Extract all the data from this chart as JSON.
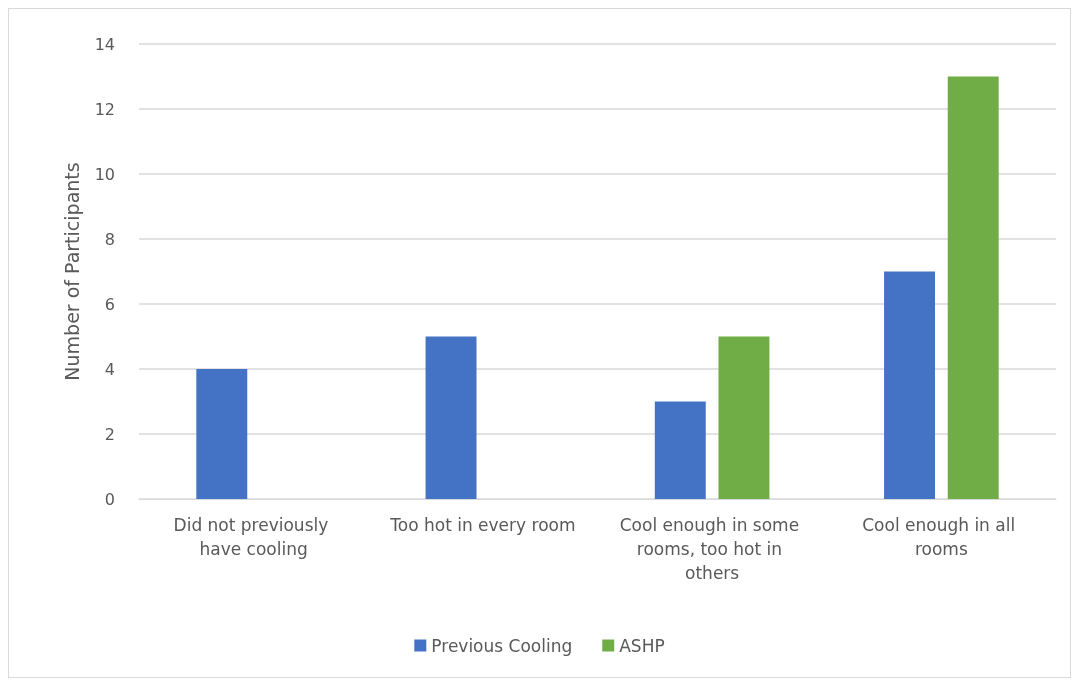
{
  "chart_data": {
    "type": "bar",
    "ylabel": "Number of Participants",
    "categories": [
      "Did not previously have cooling",
      "Too hot in every room",
      "Cool enough in some rooms, too hot in others",
      "Cool enough in all rooms"
    ],
    "series": [
      {
        "name": "Previous Cooling",
        "color": "#4472c4",
        "values": [
          4,
          5,
          3,
          7
        ]
      },
      {
        "name": "ASHP",
        "color": "#70ad47",
        "values": [
          0,
          0,
          5,
          13
        ]
      }
    ],
    "ylim": [
      0,
      14
    ],
    "yticks": [
      0,
      2,
      4,
      6,
      8,
      10,
      12,
      14
    ],
    "grid": "y",
    "legend": "bottom"
  }
}
